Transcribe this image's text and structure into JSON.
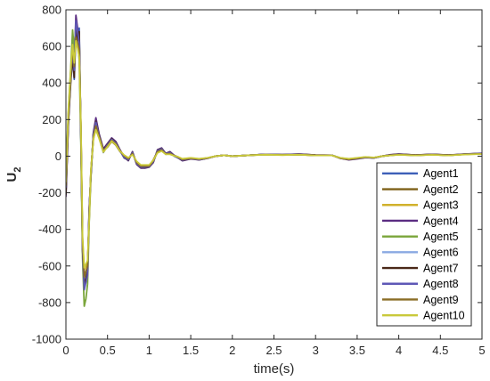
{
  "chart_data": {
    "type": "line",
    "title": "",
    "xlabel": "time(s)",
    "ylabel_main": "U",
    "ylabel_sub": "2",
    "xlim": [
      0,
      5
    ],
    "ylim": [
      -1000,
      800
    ],
    "xticks": [
      0,
      0.5,
      1,
      1.5,
      2,
      2.5,
      3,
      3.5,
      4,
      4.5,
      5
    ],
    "xtick_labels": [
      "0",
      "0.5",
      "1",
      "1.5",
      "2",
      "2.5",
      "3",
      "3.5",
      "4",
      "4.5",
      "5"
    ],
    "yticks": [
      -1000,
      -800,
      -600,
      -400,
      -200,
      0,
      200,
      400,
      600,
      800
    ],
    "ytick_labels": [
      "-1000",
      "-800",
      "-600",
      "-400",
      "-200",
      "0",
      "200",
      "400",
      "600",
      "800"
    ],
    "grid": false,
    "legend_position": "bottom-right",
    "x": [
      0,
      0.03,
      0.06,
      0.08,
      0.1,
      0.12,
      0.14,
      0.16,
      0.18,
      0.2,
      0.22,
      0.24,
      0.26,
      0.28,
      0.3,
      0.33,
      0.36,
      0.4,
      0.45,
      0.5,
      0.55,
      0.6,
      0.65,
      0.7,
      0.75,
      0.8,
      0.85,
      0.9,
      0.95,
      1.0,
      1.05,
      1.1,
      1.15,
      1.2,
      1.25,
      1.3,
      1.35,
      1.4,
      1.5,
      1.6,
      1.7,
      1.8,
      1.9,
      2.0,
      2.2,
      2.4,
      2.6,
      2.8,
      3.0,
      3.2,
      3.3,
      3.4,
      3.5,
      3.6,
      3.7,
      3.8,
      3.9,
      4.0,
      4.2,
      4.4,
      4.6,
      4.8,
      5.0
    ],
    "series": [
      {
        "name": "Agent1",
        "color": "#3d5fb8",
        "values": [
          -200,
          200,
          450,
          520,
          420,
          680,
          620,
          700,
          100,
          -500,
          -700,
          -680,
          -640,
          -300,
          -100,
          120,
          180,
          100,
          20,
          60,
          90,
          70,
          30,
          -10,
          -20,
          20,
          -40,
          -60,
          -60,
          -60,
          -30,
          30,
          40,
          10,
          20,
          0,
          -10,
          -20,
          -10,
          -20,
          -10,
          0,
          5,
          0,
          5,
          10,
          8,
          10,
          5,
          5,
          -10,
          -15,
          -10,
          -5,
          -10,
          0,
          5,
          10,
          5,
          10,
          5,
          10,
          15
        ]
      },
      {
        "name": "Agent2",
        "color": "#7e6018",
        "values": [
          -180,
          220,
          430,
          560,
          460,
          660,
          640,
          640,
          150,
          -480,
          -650,
          -640,
          -610,
          -320,
          -90,
          100,
          160,
          110,
          30,
          50,
          80,
          60,
          25,
          0,
          -15,
          15,
          -35,
          -55,
          -55,
          -55,
          -20,
          25,
          35,
          15,
          15,
          5,
          -5,
          -20,
          -15,
          -15,
          -10,
          0,
          5,
          0,
          5,
          10,
          8,
          8,
          5,
          5,
          -12,
          -18,
          -12,
          -5,
          -8,
          0,
          5,
          8,
          5,
          8,
          5,
          10,
          15
        ]
      },
      {
        "name": "Agent3",
        "color": "#d1b12c",
        "values": [
          -150,
          240,
          480,
          600,
          500,
          620,
          600,
          560,
          180,
          -450,
          -620,
          -600,
          -580,
          -340,
          -80,
          90,
          150,
          100,
          25,
          55,
          85,
          65,
          30,
          5,
          -10,
          10,
          -30,
          -50,
          -50,
          -50,
          -25,
          20,
          30,
          12,
          12,
          3,
          -5,
          -15,
          -10,
          -15,
          -10,
          0,
          5,
          0,
          5,
          8,
          6,
          8,
          4,
          4,
          -10,
          -15,
          -10,
          -5,
          -8,
          0,
          5,
          8,
          5,
          8,
          5,
          10,
          12
        ]
      },
      {
        "name": "Agent4",
        "color": "#5b2d82",
        "values": [
          -220,
          180,
          460,
          640,
          520,
          770,
          700,
          600,
          120,
          -520,
          -690,
          -660,
          -620,
          -280,
          -110,
          130,
          210,
          120,
          40,
          70,
          100,
          80,
          35,
          -5,
          -25,
          25,
          -45,
          -65,
          -65,
          -60,
          -35,
          35,
          45,
          15,
          25,
          5,
          -10,
          -25,
          -15,
          -20,
          -12,
          0,
          5,
          0,
          5,
          10,
          8,
          12,
          6,
          5,
          -12,
          -20,
          -15,
          -8,
          -10,
          0,
          8,
          12,
          6,
          10,
          6,
          12,
          16
        ]
      },
      {
        "name": "Agent5",
        "color": "#7aa53a",
        "values": [
          -100,
          260,
          500,
          690,
          580,
          720,
          640,
          520,
          60,
          -560,
          -820,
          -780,
          -700,
          -360,
          -120,
          110,
          170,
          110,
          30,
          60,
          90,
          70,
          30,
          0,
          -20,
          20,
          -40,
          -60,
          -60,
          -55,
          -30,
          25,
          40,
          12,
          18,
          2,
          -8,
          -20,
          -12,
          -18,
          -10,
          0,
          5,
          0,
          5,
          9,
          7,
          9,
          5,
          4,
          -10,
          -16,
          -12,
          -6,
          -9,
          0,
          6,
          10,
          5,
          9,
          5,
          11,
          14
        ]
      },
      {
        "name": "Agent6",
        "color": "#8aa9e2",
        "values": [
          -190,
          210,
          440,
          530,
          440,
          640,
          610,
          660,
          130,
          -490,
          -680,
          -650,
          -630,
          -310,
          -95,
          115,
          175,
          105,
          25,
          58,
          88,
          68,
          28,
          -8,
          -18,
          18,
          -38,
          -58,
          -58,
          -58,
          -28,
          28,
          38,
          11,
          18,
          1,
          -8,
          -20,
          -11,
          -18,
          -10,
          0,
          5,
          0,
          5,
          9,
          7,
          9,
          5,
          5,
          -11,
          -16,
          -11,
          -6,
          -9,
          0,
          5,
          9,
          5,
          9,
          5,
          10,
          14
        ]
      },
      {
        "name": "Agent7",
        "color": "#4a2818",
        "values": [
          -210,
          190,
          420,
          540,
          430,
          700,
          630,
          680,
          110,
          -510,
          -700,
          -670,
          -630,
          -290,
          -105,
          125,
          190,
          115,
          35,
          65,
          95,
          75,
          32,
          -8,
          -22,
          22,
          -42,
          -62,
          -62,
          -58,
          -32,
          32,
          42,
          14,
          22,
          3,
          -9,
          -22,
          -13,
          -19,
          -11,
          0,
          5,
          0,
          5,
          10,
          8,
          11,
          6,
          5,
          -11,
          -18,
          -13,
          -7,
          -9,
          0,
          7,
          11,
          6,
          10,
          6,
          11,
          15
        ]
      },
      {
        "name": "Agent8",
        "color": "#5e58b6",
        "values": [
          -170,
          230,
          450,
          580,
          470,
          740,
          680,
          620,
          140,
          -500,
          -730,
          -690,
          -650,
          -300,
          -100,
          120,
          185,
          110,
          30,
          62,
          92,
          72,
          30,
          -6,
          -20,
          20,
          -40,
          -60,
          -60,
          -57,
          -30,
          30,
          40,
          13,
          20,
          2,
          -9,
          -21,
          -12,
          -19,
          -10,
          0,
          5,
          0,
          5,
          10,
          8,
          10,
          5,
          5,
          -10,
          -17,
          -12,
          -6,
          -9,
          0,
          6,
          10,
          5,
          9,
          5,
          11,
          15
        ]
      },
      {
        "name": "Agent9",
        "color": "#8a6d25",
        "values": [
          -160,
          235,
          470,
          590,
          490,
          650,
          620,
          580,
          160,
          -470,
          -660,
          -630,
          -600,
          -330,
          -85,
          105,
          165,
          105,
          28,
          56,
          86,
          66,
          28,
          2,
          -14,
          14,
          -34,
          -54,
          -54,
          -54,
          -24,
          24,
          34,
          12,
          14,
          3,
          -6,
          -18,
          -11,
          -16,
          -10,
          0,
          5,
          0,
          5,
          9,
          7,
          8,
          5,
          4,
          -11,
          -17,
          -11,
          -5,
          -8,
          0,
          5,
          9,
          5,
          8,
          5,
          10,
          13
        ]
      },
      {
        "name": "Agent10",
        "color": "#c9c93a",
        "values": [
          -140,
          250,
          490,
          610,
          510,
          630,
          590,
          540,
          170,
          -440,
          -610,
          -590,
          -570,
          -350,
          -75,
          95,
          145,
          95,
          22,
          52,
          82,
          62,
          28,
          6,
          -8,
          8,
          -28,
          -48,
          -48,
          -48,
          -22,
          18,
          28,
          10,
          10,
          2,
          -4,
          -14,
          -9,
          -14,
          -9,
          0,
          5,
          0,
          5,
          8,
          6,
          8,
          4,
          4,
          -9,
          -14,
          -9,
          -4,
          -7,
          0,
          4,
          7,
          4,
          7,
          4,
          9,
          12
        ]
      }
    ]
  }
}
